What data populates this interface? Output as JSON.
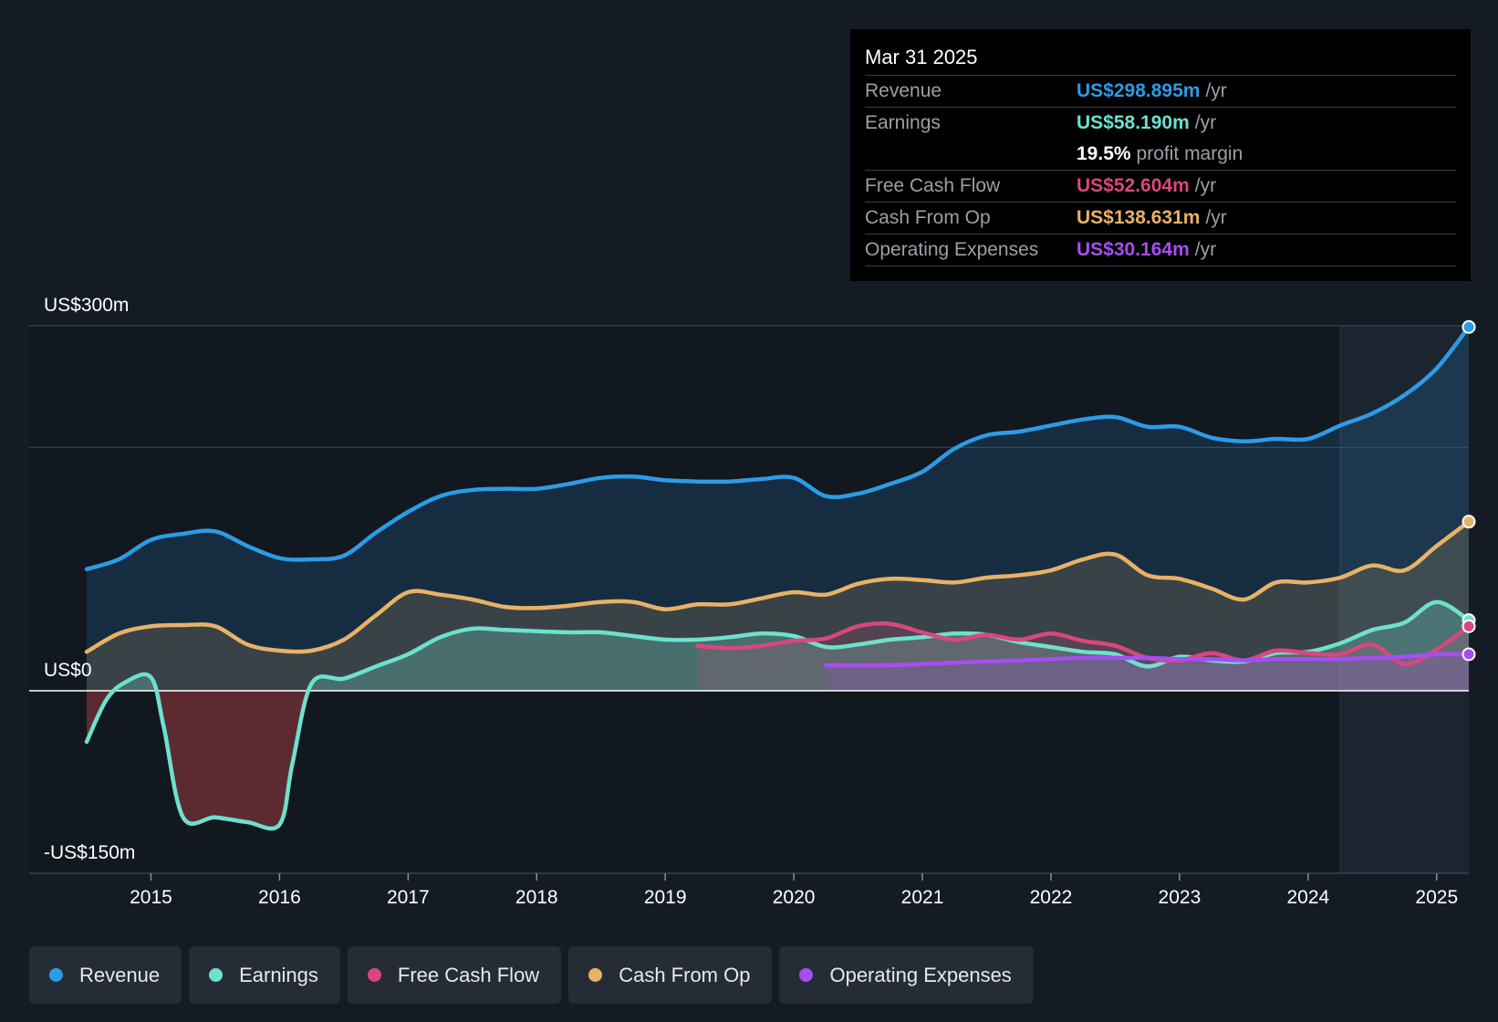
{
  "tooltip": {
    "date": "Mar 31 2025",
    "rows": [
      {
        "label": "Revenue",
        "value": "US$298.895m",
        "unit": "/yr",
        "color": "#2d9be5"
      },
      {
        "label": "Earnings",
        "value": "US$58.190m",
        "unit": "/yr",
        "color": "#6ee0cf"
      },
      {
        "margin_value": "19.5%",
        "margin_label": "profit margin"
      },
      {
        "label": "Free Cash Flow",
        "value": "US$52.604m",
        "unit": "/yr",
        "color": "#d9477d"
      },
      {
        "label": "Cash From Op",
        "value": "US$138.631m",
        "unit": "/yr",
        "color": "#e8b266"
      },
      {
        "label": "Operating Expenses",
        "value": "US$30.164m",
        "unit": "/yr",
        "color": "#a64ef0"
      }
    ]
  },
  "legend": [
    {
      "label": "Revenue",
      "color": "#2d9be5"
    },
    {
      "label": "Earnings",
      "color": "#6ee0cf"
    },
    {
      "label": "Free Cash Flow",
      "color": "#d9477d"
    },
    {
      "label": "Cash From Op",
      "color": "#e8b266"
    },
    {
      "label": "Operating Expenses",
      "color": "#a64ef0"
    }
  ],
  "chart_data": {
    "type": "area",
    "title": "",
    "xlabel": "",
    "ylabel": "",
    "xlim": [
      2014.5,
      2025.25
    ],
    "ylim": [
      -150,
      300
    ],
    "forecast_start": 2024.25,
    "y_axis_labels": [
      {
        "value": 300,
        "label": "US$300m"
      },
      {
        "value": 0,
        "label": "US$0"
      },
      {
        "value": -150,
        "label": "-US$150m"
      }
    ],
    "gridlines": [
      300,
      200,
      0
    ],
    "x_ticks": [
      2015,
      2016,
      2017,
      2018,
      2019,
      2020,
      2021,
      2022,
      2023,
      2024,
      2025
    ],
    "series": [
      {
        "name": "Revenue",
        "color": "#2d9be5",
        "fill": true,
        "x": [
          2014.5,
          2014.75,
          2015.0,
          2015.25,
          2015.5,
          2015.75,
          2016.0,
          2016.25,
          2016.5,
          2016.75,
          2017.0,
          2017.25,
          2017.5,
          2017.75,
          2018.0,
          2018.25,
          2018.5,
          2018.75,
          2019.0,
          2019.25,
          2019.5,
          2019.75,
          2020.0,
          2020.25,
          2020.5,
          2020.75,
          2021.0,
          2021.25,
          2021.5,
          2021.75,
          2022.0,
          2022.25,
          2022.5,
          2022.75,
          2023.0,
          2023.25,
          2023.5,
          2023.75,
          2024.0,
          2024.25,
          2024.5,
          2024.75,
          2025.0,
          2025.25
        ],
        "values": [
          100,
          108,
          124,
          129,
          131,
          119,
          109,
          108,
          111,
          130,
          147,
          160,
          165,
          166,
          166,
          170,
          175,
          176,
          173,
          172,
          172,
          174,
          175,
          160,
          162,
          170,
          180,
          199,
          210,
          213,
          218,
          223,
          225,
          217,
          217,
          208,
          205,
          207,
          207,
          218,
          228,
          243,
          265,
          299
        ]
      },
      {
        "name": "Cash From Op",
        "color": "#e8b266",
        "fill": true,
        "x": [
          2014.5,
          2014.75,
          2015.0,
          2015.25,
          2015.5,
          2015.75,
          2016.0,
          2016.25,
          2016.5,
          2016.75,
          2017.0,
          2017.25,
          2017.5,
          2017.75,
          2018.0,
          2018.25,
          2018.5,
          2018.75,
          2019.0,
          2019.25,
          2019.5,
          2019.75,
          2020.0,
          2020.25,
          2020.5,
          2020.75,
          2021.0,
          2021.25,
          2021.5,
          2021.75,
          2022.0,
          2022.25,
          2022.5,
          2022.75,
          2023.0,
          2023.25,
          2023.5,
          2023.75,
          2024.0,
          2024.25,
          2024.5,
          2024.75,
          2025.0,
          2025.25
        ],
        "values": [
          32,
          47,
          53,
          54,
          53,
          38,
          33,
          33,
          42,
          62,
          81,
          79,
          75,
          69,
          68,
          70,
          73,
          73,
          67,
          71,
          71,
          76,
          81,
          79,
          88,
          92,
          91,
          89,
          93,
          95,
          99,
          108,
          112,
          95,
          92,
          84,
          75,
          89,
          89,
          93,
          103,
          99,
          119,
          139
        ]
      },
      {
        "name": "Earnings",
        "color": "#6ee0cf",
        "fill": true,
        "x": [
          2014.5,
          2014.65,
          2014.8,
          2015.0,
          2015.1,
          2015.25,
          2015.5,
          2015.75,
          2016.0,
          2016.1,
          2016.25,
          2016.5,
          2016.75,
          2017.0,
          2017.25,
          2017.5,
          2017.75,
          2018.0,
          2018.25,
          2018.5,
          2018.75,
          2019.0,
          2019.25,
          2019.5,
          2019.75,
          2020.0,
          2020.25,
          2020.5,
          2020.75,
          2021.0,
          2021.25,
          2021.5,
          2021.75,
          2022.0,
          2022.25,
          2022.5,
          2022.75,
          2023.0,
          2023.25,
          2023.5,
          2023.75,
          2024.0,
          2024.25,
          2024.5,
          2024.75,
          2025.0,
          2025.25
        ],
        "values": [
          -42,
          -8,
          7,
          11,
          -30,
          -104,
          -104,
          -108,
          -110,
          -60,
          6,
          10,
          20,
          30,
          44,
          51,
          50,
          49,
          48,
          48,
          45,
          42,
          42,
          44,
          47,
          45,
          36,
          38,
          42,
          44,
          47,
          46,
          40,
          36,
          32,
          30,
          20,
          28,
          25,
          24,
          31,
          32,
          39,
          50,
          56,
          73,
          58
        ]
      },
      {
        "name": "Free Cash Flow",
        "color": "#d9477d",
        "fill": true,
        "x": [
          2019.25,
          2019.5,
          2019.75,
          2020.0,
          2020.25,
          2020.5,
          2020.75,
          2021.0,
          2021.25,
          2021.5,
          2021.75,
          2022.0,
          2022.25,
          2022.5,
          2022.75,
          2023.0,
          2023.25,
          2023.5,
          2023.75,
          2024.0,
          2024.25,
          2024.5,
          2024.75,
          2025.0,
          2025.25
        ],
        "values": [
          37,
          35,
          37,
          41,
          43,
          53,
          55,
          48,
          42,
          46,
          42,
          47,
          41,
          37,
          27,
          25,
          31,
          25,
          33,
          31,
          30,
          38,
          22,
          34,
          53
        ]
      },
      {
        "name": "Operating Expenses",
        "color": "#a64ef0",
        "fill": true,
        "x": [
          2020.25,
          2020.75,
          2021.0,
          2021.25,
          2021.5,
          2021.75,
          2022.0,
          2022.25,
          2022.5,
          2022.75,
          2023.0,
          2023.25,
          2023.5,
          2023.75,
          2024.0,
          2024.25,
          2024.5,
          2024.75,
          2025.0,
          2025.25
        ],
        "values": [
          21,
          21,
          22,
          23,
          24,
          25,
          26,
          27,
          27,
          27,
          26,
          26,
          25,
          26,
          26,
          26,
          27,
          28,
          30,
          30
        ]
      }
    ]
  }
}
